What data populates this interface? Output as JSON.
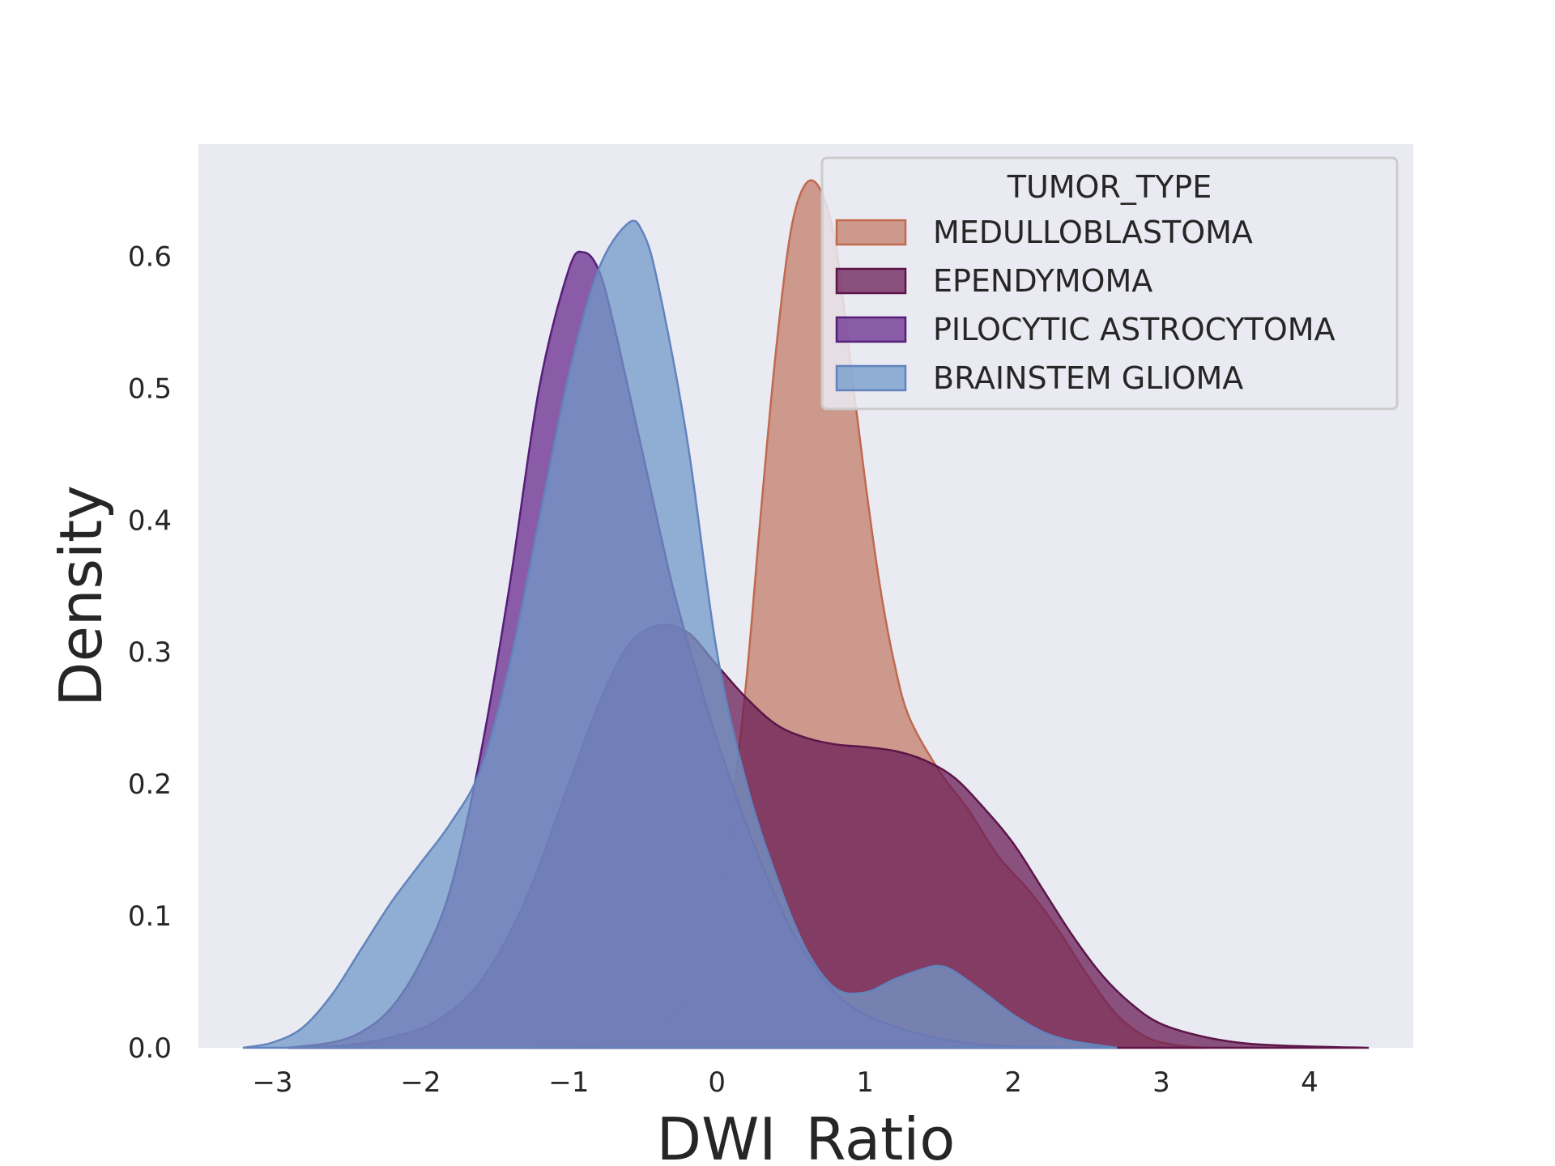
{
  "chart_data": {
    "type": "area",
    "xlabel": "DWI_Ratio",
    "ylabel": "Density",
    "xlim": [
      -3.5,
      4.7
    ],
    "ylim": [
      0,
      0.685
    ],
    "xticks": [
      -3,
      -2,
      -1,
      0,
      1,
      2,
      3,
      4
    ],
    "xtick_labels": [
      "−3",
      "−2",
      "−1",
      "0",
      "1",
      "2",
      "3",
      "4"
    ],
    "yticks": [
      0.0,
      0.1,
      0.2,
      0.3,
      0.4,
      0.5,
      0.6
    ],
    "ytick_labels": [
      "0.0",
      "0.1",
      "0.2",
      "0.3",
      "0.4",
      "0.5",
      "0.6"
    ],
    "grid": false,
    "background": "#eaeaf2",
    "legend": {
      "title": "TUMOR_TYPE",
      "placement": "top-right"
    },
    "series": [
      {
        "name": "MEDULLOBLASTOMA",
        "fill": "#c27e6a",
        "stroke": "#c0694f",
        "opacity": 0.75,
        "points": [
          [
            -1.3,
            0
          ],
          [
            -1.0,
            0.001
          ],
          [
            -0.7,
            0.004
          ],
          [
            -0.4,
            0.015
          ],
          [
            -0.2,
            0.04
          ],
          [
            0.0,
            0.1
          ],
          [
            0.1,
            0.18
          ],
          [
            0.2,
            0.28
          ],
          [
            0.3,
            0.41
          ],
          [
            0.4,
            0.53
          ],
          [
            0.5,
            0.62
          ],
          [
            0.6,
            0.655
          ],
          [
            0.7,
            0.65
          ],
          [
            0.8,
            0.61
          ],
          [
            0.9,
            0.52
          ],
          [
            1.0,
            0.43
          ],
          [
            1.1,
            0.35
          ],
          [
            1.2,
            0.29
          ],
          [
            1.3,
            0.25
          ],
          [
            1.5,
            0.21
          ],
          [
            1.7,
            0.18
          ],
          [
            1.9,
            0.145
          ],
          [
            2.1,
            0.12
          ],
          [
            2.3,
            0.09
          ],
          [
            2.5,
            0.055
          ],
          [
            2.7,
            0.025
          ],
          [
            2.9,
            0.008
          ],
          [
            3.1,
            0.002
          ],
          [
            3.3,
            0
          ]
        ]
      },
      {
        "name": "EPENDYMOMA",
        "fill": "#6b1e57",
        "stroke": "#5c1548",
        "opacity": 0.75,
        "points": [
          [
            -2.9,
            0
          ],
          [
            -2.5,
            0.002
          ],
          [
            -2.2,
            0.008
          ],
          [
            -1.9,
            0.02
          ],
          [
            -1.6,
            0.05
          ],
          [
            -1.3,
            0.11
          ],
          [
            -1.0,
            0.2
          ],
          [
            -0.8,
            0.26
          ],
          [
            -0.6,
            0.305
          ],
          [
            -0.4,
            0.32
          ],
          [
            -0.2,
            0.315
          ],
          [
            0.0,
            0.29
          ],
          [
            0.2,
            0.265
          ],
          [
            0.4,
            0.245
          ],
          [
            0.6,
            0.235
          ],
          [
            0.8,
            0.23
          ],
          [
            1.0,
            0.228
          ],
          [
            1.2,
            0.225
          ],
          [
            1.4,
            0.218
          ],
          [
            1.6,
            0.205
          ],
          [
            1.8,
            0.182
          ],
          [
            2.0,
            0.155
          ],
          [
            2.2,
            0.12
          ],
          [
            2.4,
            0.085
          ],
          [
            2.6,
            0.055
          ],
          [
            2.8,
            0.033
          ],
          [
            3.0,
            0.018
          ],
          [
            3.3,
            0.008
          ],
          [
            3.6,
            0.003
          ],
          [
            4.0,
            0.001
          ],
          [
            4.4,
            0
          ]
        ]
      },
      {
        "name": "PILOCYTIC ASTROCYTOMA",
        "fill": "#6a2c8e",
        "stroke": "#531f78",
        "opacity": 0.75,
        "points": [
          [
            -2.9,
            0
          ],
          [
            -2.6,
            0.004
          ],
          [
            -2.4,
            0.012
          ],
          [
            -2.2,
            0.03
          ],
          [
            -2.0,
            0.065
          ],
          [
            -1.8,
            0.12
          ],
          [
            -1.6,
            0.22
          ],
          [
            -1.4,
            0.35
          ],
          [
            -1.2,
            0.5
          ],
          [
            -1.0,
            0.59
          ],
          [
            -0.9,
            0.603
          ],
          [
            -0.8,
            0.59
          ],
          [
            -0.7,
            0.55
          ],
          [
            -0.5,
            0.45
          ],
          [
            -0.3,
            0.35
          ],
          [
            -0.1,
            0.27
          ],
          [
            0.1,
            0.2
          ],
          [
            0.3,
            0.14
          ],
          [
            0.5,
            0.09
          ],
          [
            0.7,
            0.055
          ],
          [
            0.9,
            0.032
          ],
          [
            1.2,
            0.016
          ],
          [
            1.6,
            0.005
          ],
          [
            2.0,
            0.001
          ],
          [
            2.4,
            0
          ]
        ]
      },
      {
        "name": "BRAINSTEM GLIOMA",
        "fill": "#7298c8",
        "stroke": "#6184be",
        "opacity": 0.75,
        "points": [
          [
            -3.2,
            0
          ],
          [
            -3.0,
            0.004
          ],
          [
            -2.8,
            0.015
          ],
          [
            -2.6,
            0.04
          ],
          [
            -2.4,
            0.075
          ],
          [
            -2.2,
            0.11
          ],
          [
            -2.0,
            0.14
          ],
          [
            -1.8,
            0.17
          ],
          [
            -1.6,
            0.21
          ],
          [
            -1.4,
            0.29
          ],
          [
            -1.2,
            0.4
          ],
          [
            -1.0,
            0.51
          ],
          [
            -0.8,
            0.59
          ],
          [
            -0.6,
            0.625
          ],
          [
            -0.5,
            0.618
          ],
          [
            -0.4,
            0.58
          ],
          [
            -0.2,
            0.46
          ],
          [
            0.0,
            0.3
          ],
          [
            0.2,
            0.2
          ],
          [
            0.4,
            0.13
          ],
          [
            0.6,
            0.075
          ],
          [
            0.8,
            0.045
          ],
          [
            1.0,
            0.042
          ],
          [
            1.2,
            0.052
          ],
          [
            1.4,
            0.06
          ],
          [
            1.5,
            0.062
          ],
          [
            1.6,
            0.058
          ],
          [
            1.8,
            0.042
          ],
          [
            2.0,
            0.025
          ],
          [
            2.2,
            0.012
          ],
          [
            2.4,
            0.005
          ],
          [
            2.7,
            0
          ]
        ]
      }
    ]
  }
}
